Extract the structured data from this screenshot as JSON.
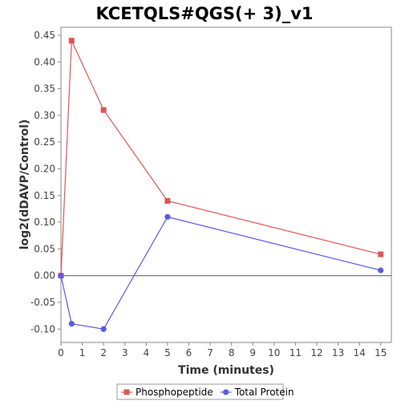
{
  "chart_data": {
    "type": "line",
    "title": "KCETQLS#QGS(+ 3)_v1",
    "xlabel": "Time (minutes)",
    "ylabel": "log2(dDAVP/Control)",
    "xlim": [
      0,
      15.5
    ],
    "ylim": [
      -0.125,
      0.465
    ],
    "xticks": [
      "0",
      "1",
      "2",
      "3",
      "4",
      "5",
      "6",
      "7",
      "8",
      "9",
      "10",
      "11",
      "12",
      "13",
      "14",
      "15"
    ],
    "yticks": [
      "-0.10",
      "-0.05",
      "0.00",
      "0.05",
      "0.10",
      "0.15",
      "0.20",
      "0.25",
      "0.30",
      "0.35",
      "0.40",
      "0.45"
    ],
    "legend_position": "bottom",
    "series": [
      {
        "name": "Phosphopeptide",
        "color": "#e05555",
        "marker": "square",
        "x": [
          0,
          0.5,
          2,
          5,
          15
        ],
        "y": [
          0.0,
          0.44,
          0.31,
          0.14,
          0.04
        ]
      },
      {
        "name": "Total Protein",
        "color": "#5a5ae6",
        "marker": "circle",
        "x": [
          0,
          0.5,
          2,
          5,
          15
        ],
        "y": [
          0.0,
          -0.09,
          -0.1,
          0.11,
          0.01
        ]
      }
    ]
  }
}
